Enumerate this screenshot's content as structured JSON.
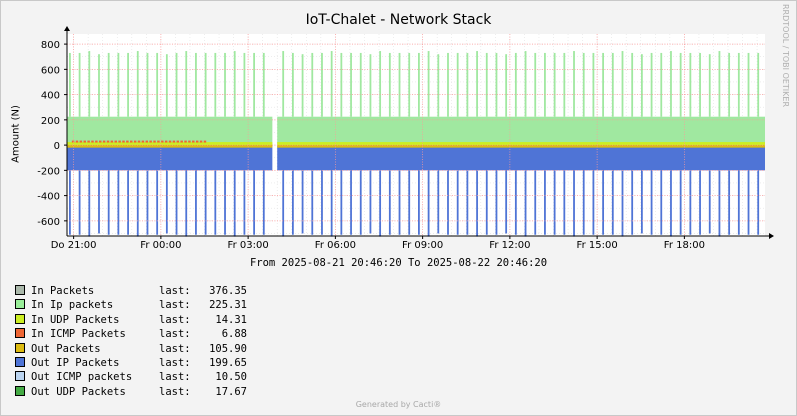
{
  "title": "IoT-Chalet - Network Stack",
  "side_tag": "RRDTOOL / TOBI OETIKER",
  "range_text": "From 2025-08-21 20:46:20 To 2025-08-22 20:46:20",
  "footer": "Generated by Cacti®",
  "colors": {
    "canvas_bg": "#ffffff",
    "frame_bg": "#f3f3f3",
    "grid": "#ff9999",
    "in_ip": "#a0e8a0",
    "out_ip": "#4f74d6",
    "in_udp": "#ccee22",
    "in_icmp": "#ee6633",
    "out_packets": "#ddbb11"
  },
  "chart_data": {
    "type": "area",
    "title": "IoT-Chalet - Network Stack",
    "xlabel": "",
    "ylabel": "Amount (N)",
    "ylim": [
      -720,
      880
    ],
    "x_ticks": [
      "Do 21:00",
      "Fr 00:00",
      "Fr 03:00",
      "Fr 06:00",
      "Fr 09:00",
      "Fr 12:00",
      "Fr 15:00",
      "Fr 18:00"
    ],
    "y_ticks": [
      800,
      600,
      400,
      200,
      0,
      -200,
      -400,
      -600
    ],
    "grid": true,
    "x_start": "2025-08-21 20:46:20",
    "x_end": "2025-08-22 20:46:20",
    "data_gap": [
      "2025-08-22 03:50",
      "2025-08-22 04:00"
    ],
    "spike_interval_minutes": 20,
    "series": [
      {
        "name": "In Ip packets",
        "baseline": 225,
        "peak": 730
      },
      {
        "name": "In UDP Packets",
        "baseline": 14
      },
      {
        "name": "In ICMP Packets",
        "baseline": 7
      },
      {
        "name": "Out Packets",
        "baseline": -20
      },
      {
        "name": "Out IP Packets",
        "baseline": -200,
        "peak": -710
      }
    ],
    "legend": [
      {
        "name": "In Packets",
        "last_label": "last:",
        "last": "376.35",
        "color": "#aab8aa"
      },
      {
        "name": "In Ip packets",
        "last_label": "last:",
        "last": "225.31",
        "color": "#99ee99"
      },
      {
        "name": "In UDP Packets",
        "last_label": "last:",
        "last": "14.31",
        "color": "#ccee22"
      },
      {
        "name": "In ICMP Packets",
        "last_label": "last:",
        "last": "6.88",
        "color": "#ee6633"
      },
      {
        "name": "Out Packets",
        "last_label": "last:",
        "last": "105.90",
        "color": "#ddbb11"
      },
      {
        "name": "Out IP Packets",
        "last_label": "last:",
        "last": "199.65",
        "color": "#4f74d6"
      },
      {
        "name": "Out ICMP packets",
        "last_label": "last:",
        "last": "10.50",
        "color": "#bbd4f0"
      },
      {
        "name": "Out UDP Packets",
        "last_label": "last:",
        "last": "17.67",
        "color": "#44aa44"
      }
    ]
  }
}
